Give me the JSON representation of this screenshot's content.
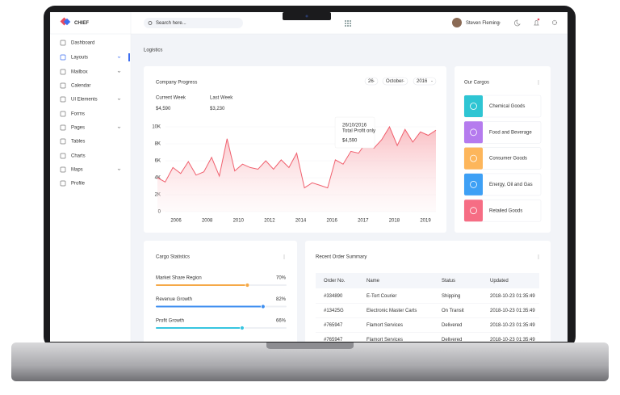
{
  "app": {
    "logo": "CHIEF",
    "search": "Search here...",
    "user": "Steven Fleming"
  },
  "sidebar": [
    "Dashboard",
    "Layouts",
    "Mailbox",
    "Calendar",
    "UI Elements",
    "Forms",
    "Pages",
    "Tables",
    "Charts",
    "Maps",
    "Profile"
  ],
  "page_title": "Logistics",
  "progress": {
    "title": "Company Progress",
    "filters": [
      "26",
      "October",
      "2016"
    ],
    "current_label": "Current Week",
    "current_value": "$4,590",
    "last_label": "Last Week",
    "last_value": "$3,230",
    "tooltip": {
      "date": "26/10/2016",
      "label": "Total Profit only",
      "value": "$4,590"
    },
    "chart_data": {
      "type": "area",
      "ylim": [
        0,
        10000
      ],
      "yticks": [
        {
          "value": 0,
          "label": "0"
        },
        {
          "value": 2000,
          "label": "2K"
        },
        {
          "value": 4000,
          "label": "4K"
        },
        {
          "value": 6000,
          "label": "6K"
        },
        {
          "value": 8000,
          "label": "8K"
        },
        {
          "value": 10000,
          "label": "10K"
        }
      ],
      "xticks": [
        2006,
        2008,
        2010,
        2012,
        2014,
        2016,
        2017,
        2018,
        2019
      ],
      "series": [
        {
          "color": "#f0606e",
          "values": [
            4000,
            3500,
            5200,
            4500,
            5900,
            4300,
            4700,
            6400,
            4200,
            8600,
            4800,
            5600,
            5200,
            5000,
            6000,
            5000,
            6100,
            5200,
            6900,
            2800,
            3400,
            3100,
            2800,
            6100,
            5600,
            7100,
            6900,
            8200,
            7500,
            8500,
            10000,
            7800,
            9700,
            8200,
            9400,
            9000,
            9600
          ]
        }
      ]
    }
  },
  "cargos": {
    "title": "Our Cargos",
    "items": [
      "Chemical Goods",
      "Food and Beverage",
      "Consumer Goods",
      "Energy, Oil and Gas",
      "Retailed Goods"
    ]
  },
  "stats": {
    "title": "Cargo Statistics",
    "items": [
      {
        "label": "Market Share Region",
        "percent": {
          "value": 70,
          "label": "70%"
        }
      },
      {
        "label": "Revenue Growth",
        "percent": {
          "value": 82,
          "label": "82%"
        }
      },
      {
        "label": "Profit Growth",
        "percent": {
          "value": 66,
          "label": "66%"
        }
      }
    ]
  },
  "orders": {
    "title": "Recent Order Summary",
    "columns": [
      "Order No.",
      "Name",
      "Status",
      "Updated"
    ],
    "rows": [
      [
        "#334890",
        "E-Tort Courier",
        "Shipping",
        "2018-10-23  01:35:49"
      ],
      [
        "#13425G",
        "Electronic Master Carts",
        "On Transit",
        "2018-10-23  01:35:49"
      ],
      [
        "#765947",
        "Flamort Services",
        "Delivered",
        "2018-10-23  01:35:49"
      ],
      [
        "#765947",
        "Flamort Services",
        "Delivered",
        "2018-10-23  01:35:49"
      ]
    ]
  }
}
